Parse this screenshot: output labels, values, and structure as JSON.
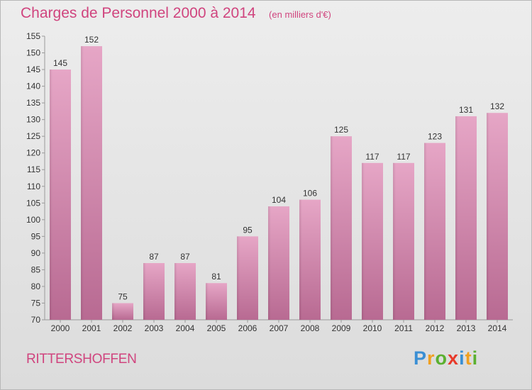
{
  "chart_data": {
    "type": "bar",
    "title": "Charges de Personnel 2000 à 2014",
    "unit": "(en milliers d'€)",
    "categories": [
      "2000",
      "2001",
      "2002",
      "2003",
      "2004",
      "2005",
      "2006",
      "2007",
      "2008",
      "2009",
      "2010",
      "2011",
      "2012",
      "2013",
      "2014"
    ],
    "values": [
      145,
      152,
      75,
      87,
      87,
      81,
      95,
      104,
      106,
      125,
      117,
      117,
      123,
      131,
      132
    ],
    "ylim": [
      70,
      155
    ],
    "yticks": [
      70,
      75,
      80,
      85,
      90,
      95,
      100,
      105,
      110,
      115,
      120,
      125,
      130,
      135,
      140,
      145,
      150,
      155
    ],
    "grid": false,
    "bar_color": "#d2739f",
    "xlabel": "",
    "ylabel": ""
  },
  "place": "RITTERSHOFFEN",
  "brand": {
    "letters": [
      "P",
      "r",
      "o",
      "x",
      "i",
      "t",
      "i"
    ],
    "colors": [
      "#3a8fd4",
      "#f0a020",
      "#5bb030",
      "#e83a2a",
      "#3a8fd4",
      "#f0a020",
      "#5bb030"
    ]
  }
}
